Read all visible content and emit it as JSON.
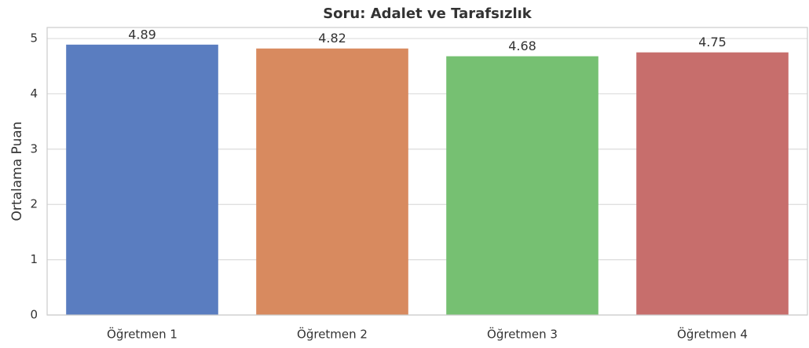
{
  "chart_data": {
    "type": "bar",
    "title": "Soru: Adalet ve Tarafsızlık",
    "y_label": "Ortalama Puan",
    "categories": [
      "Öğretmen 1",
      "Öğretmen 2",
      "Öğretmen 3",
      "Öğretmen 4"
    ],
    "values": [
      4.89,
      4.82,
      4.68,
      4.75
    ],
    "colors": [
      "#5a7dc0",
      "#d88a5f",
      "#76c072",
      "#c76e6c"
    ],
    "ylim": [
      0,
      5.2
    ],
    "yticks": [
      0,
      1,
      2,
      3,
      4,
      5
    ],
    "grid": true
  }
}
